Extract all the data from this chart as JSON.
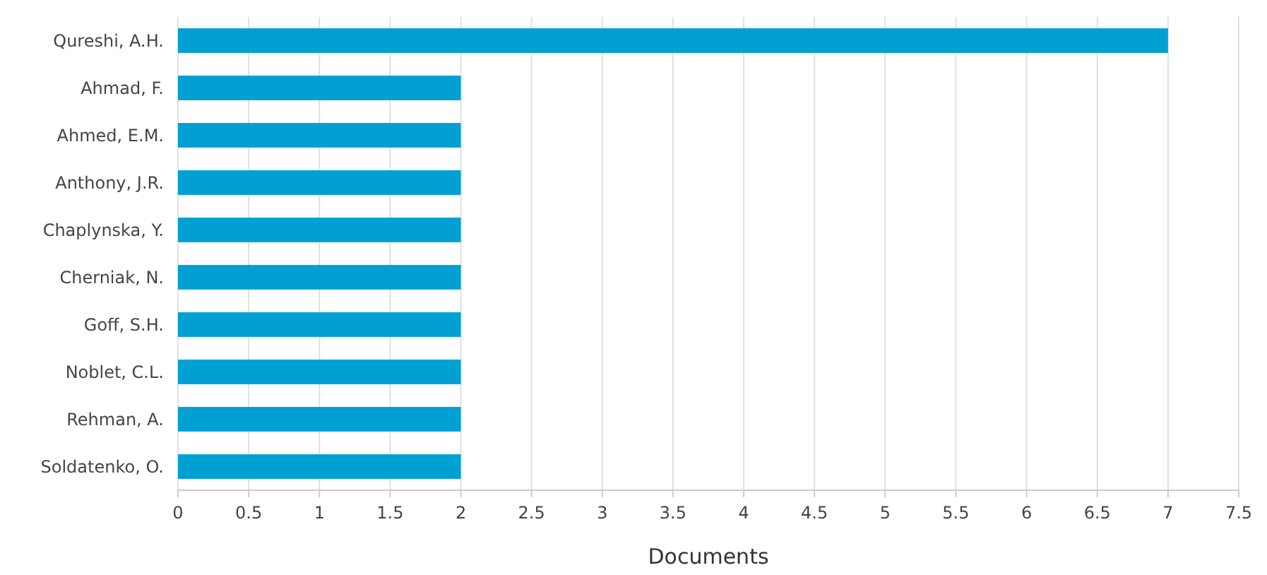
{
  "chart_data": {
    "type": "bar",
    "orientation": "horizontal",
    "xlabel": "Documents",
    "categories": [
      "Qureshi, A.H.",
      "Ahmad, F.",
      "Ahmed, E.M.",
      "Anthony, J.R.",
      "Chaplynska, Y.",
      "Cherniak, N.",
      "Goff, S.H.",
      "Noblet, C.L.",
      "Rehman, A.",
      "Soldatenko, O."
    ],
    "values": [
      7,
      2,
      2,
      2,
      2,
      2,
      2,
      2,
      2,
      2
    ],
    "color": "#00a0d2",
    "xlim": [
      0,
      7.5
    ],
    "xticks": [
      0,
      0.5,
      1,
      1.5,
      2,
      2.5,
      3,
      3.5,
      4,
      4.5,
      5,
      5.5,
      6,
      6.5,
      7,
      7.5
    ],
    "grid": "x"
  }
}
